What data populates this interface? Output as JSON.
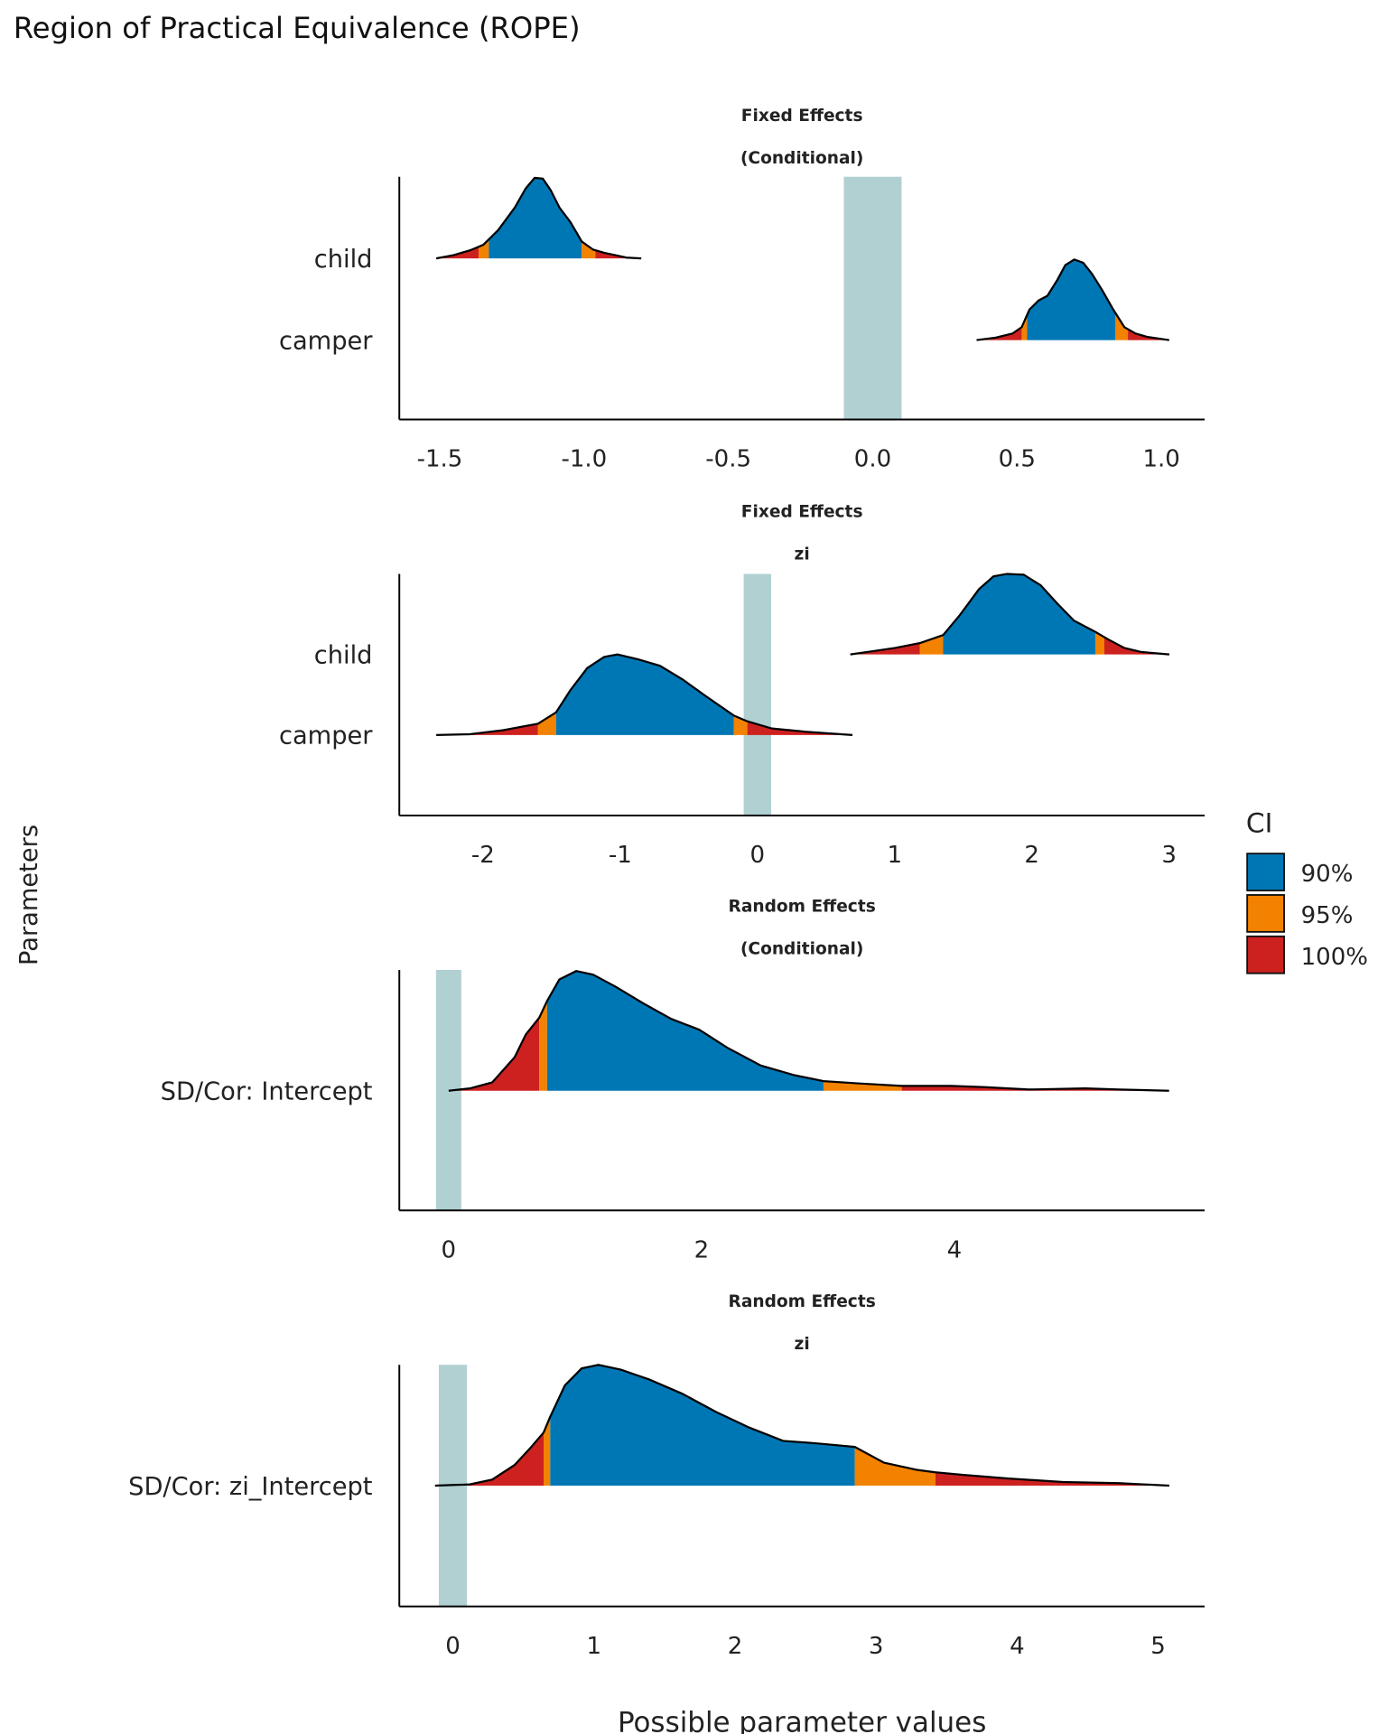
{
  "chart_data": {
    "type": "area",
    "title": "Region of Practical Equivalence (ROPE)",
    "xlabel": "Possible parameter values",
    "ylabel": "Parameters",
    "legend": {
      "title": "CI",
      "placement": "right",
      "entries": [
        {
          "label": "90%",
          "color": "#0077b5"
        },
        {
          "label": "95%",
          "color": "#f28200"
        },
        {
          "label": "100%",
          "color": "#cd2120"
        }
      ]
    },
    "rope": {
      "range": [
        -0.1,
        0.1
      ],
      "color": "#b0d0d2"
    },
    "grid": false,
    "panels": [
      {
        "strip": [
          "Fixed Effects",
          "(Conditional)"
        ],
        "xlim": [
          -1.64,
          1.15
        ],
        "xticks": [
          -1.5,
          -1.0,
          -0.5,
          0.0,
          0.5,
          1.0
        ],
        "xtick_labels": [
          "-1.5",
          "-1.0",
          "-0.5",
          "0.0",
          "0.5",
          "1.0"
        ],
        "categories": [
          "camper",
          "child"
        ],
        "series": [
          {
            "parameter": "child",
            "ci_95": [
              -1.365,
              -0.961
            ],
            "ci_90": [
              -1.33,
              -1.008
            ],
            "x": [
              -1.512,
              -1.453,
              -1.395,
              -1.349,
              -1.298,
              -1.24,
              -1.202,
              -1.171,
              -1.143,
              -1.116,
              -1.085,
              -1.047,
              -1.008,
              -0.969,
              -0.93,
              -0.891,
              -0.853,
              -0.802
            ],
            "density": [
              0,
              0.04,
              0.1,
              0.17,
              0.35,
              0.63,
              0.87,
              1,
              0.99,
              0.85,
              0.63,
              0.45,
              0.21,
              0.11,
              0.07,
              0.04,
              0.01,
              0
            ]
          },
          {
            "parameter": "camper",
            "ci_95": [
              0.516,
              0.884
            ],
            "ci_90": [
              0.535,
              0.841
            ],
            "x": [
              0.36,
              0.426,
              0.484,
              0.516,
              0.543,
              0.574,
              0.605,
              0.64,
              0.667,
              0.698,
              0.729,
              0.76,
              0.795,
              0.833,
              0.872,
              0.911,
              0.95,
              1.027
            ],
            "density": [
              0,
              0.03,
              0.08,
              0.16,
              0.38,
              0.49,
              0.55,
              0.75,
              0.93,
              1,
              0.96,
              0.82,
              0.62,
              0.38,
              0.16,
              0.08,
              0.04,
              0
            ]
          }
        ]
      },
      {
        "strip": [
          "Fixed Effects",
          "zi"
        ],
        "xlim": [
          -2.61,
          3.26
        ],
        "xticks": [
          -2,
          -1,
          0,
          1,
          2,
          3
        ],
        "xtick_labels": [
          "-2",
          "-1",
          "0",
          "1",
          "2",
          "3"
        ],
        "categories": [
          "camper",
          "child"
        ],
        "series": [
          {
            "parameter": "child",
            "ci_95": [
              1.183,
              2.529
            ],
            "ci_90": [
              1.354,
              2.463
            ],
            "x": [
              0.677,
              0.84,
              1.003,
              1.183,
              1.354,
              1.476,
              1.615,
              1.721,
              1.819,
              1.941,
              2.064,
              2.186,
              2.308,
              2.463,
              2.553,
              2.675,
              2.798,
              3.002
            ],
            "density": [
              0,
              0.04,
              0.08,
              0.14,
              0.24,
              0.49,
              0.81,
              0.97,
              1,
              0.99,
              0.86,
              0.63,
              0.42,
              0.28,
              0.19,
              0.08,
              0.03,
              0
            ]
          },
          {
            "parameter": "camper",
            "ci_95": [
              -1.599,
              -0.073
            ],
            "ci_90": [
              -1.468,
              -0.171
            ],
            "x": [
              -2.341,
              -2.096,
              -1.852,
              -1.599,
              -1.468,
              -1.362,
              -1.24,
              -1.117,
              -1.02,
              -0.873,
              -0.71,
              -0.546,
              -0.383,
              -0.171,
              -0.073,
              0.106,
              0.351,
              0.693
            ],
            "density": [
              0,
              0.01,
              0.06,
              0.14,
              0.28,
              0.56,
              0.83,
              0.97,
              1,
              0.94,
              0.86,
              0.69,
              0.49,
              0.24,
              0.17,
              0.08,
              0.04,
              0
            ]
          }
        ]
      },
      {
        "strip": [
          "Random Effects",
          "(Conditional)"
        ],
        "xlim": [
          -0.39,
          5.98
        ],
        "xticks": [
          0,
          2,
          4
        ],
        "xtick_labels": [
          "0",
          "2",
          "4"
        ],
        "categories": [
          "SD/Cor:  Intercept"
        ],
        "series": [
          {
            "parameter": "SD/Cor:  Intercept",
            "ci_95": [
              0.717,
              3.584
            ],
            "ci_90": [
              0.779,
              2.965
            ],
            "x": [
              0,
              0.168,
              0.345,
              0.522,
              0.611,
              0.717,
              0.779,
              0.876,
              1.009,
              1.142,
              1.319,
              1.54,
              1.761,
              1.982,
              2.204,
              2.469,
              2.735,
              2.965,
              3.265,
              3.584,
              3.973,
              4.239,
              4.593,
              5.035,
              5.301,
              5.699
            ],
            "density": [
              0,
              0.02,
              0.07,
              0.28,
              0.47,
              0.61,
              0.75,
              0.93,
              1,
              0.97,
              0.87,
              0.73,
              0.6,
              0.51,
              0.36,
              0.21,
              0.13,
              0.08,
              0.06,
              0.04,
              0.04,
              0.03,
              0.01,
              0.02,
              0.01,
              0
            ]
          }
        ]
      },
      {
        "strip": [
          "Random Effects",
          "zi"
        ],
        "xlim": [
          -0.38,
          5.33
        ],
        "xticks": [
          0,
          1,
          2,
          3,
          4,
          5
        ],
        "xtick_labels": [
          "0",
          "1",
          "2",
          "3",
          "4",
          "5"
        ],
        "categories": [
          "SD/Cor:  zi_Intercept"
        ],
        "series": [
          {
            "parameter": "SD/Cor:  zi_Intercept",
            "ci_95": [
              0.643,
              3.421
            ],
            "ci_90": [
              0.69,
              2.849
            ],
            "x": [
              -0.127,
              0.119,
              0.278,
              0.437,
              0.556,
              0.643,
              0.69,
              0.794,
              0.913,
              1.032,
              1.19,
              1.389,
              1.627,
              1.865,
              2.103,
              2.341,
              2.579,
              2.849,
              3.056,
              3.294,
              3.421,
              3.611,
              3.929,
              4.325,
              4.722,
              5.079
            ],
            "density": [
              0,
              0.01,
              0.05,
              0.17,
              0.32,
              0.44,
              0.57,
              0.83,
              0.97,
              1,
              0.96,
              0.88,
              0.76,
              0.61,
              0.48,
              0.37,
              0.35,
              0.32,
              0.19,
              0.13,
              0.11,
              0.09,
              0.06,
              0.03,
              0.02,
              0
            ]
          }
        ]
      }
    ]
  }
}
